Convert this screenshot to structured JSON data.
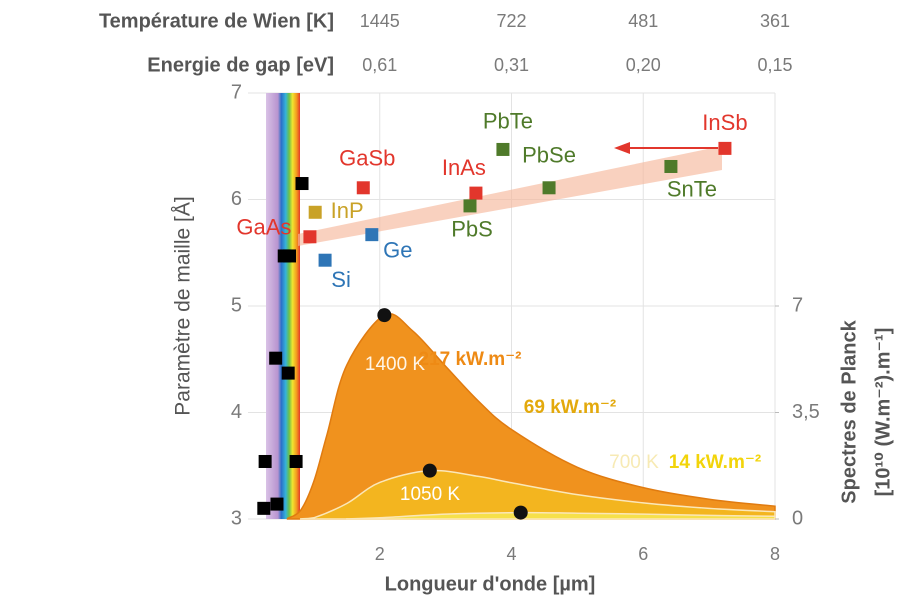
{
  "chart_data": {
    "type": "scatter",
    "xlabel": "Longueur d'onde [µm]",
    "ylabel": "Paramètre de maille [Å]",
    "y2label": [
      "Spectres de Planck",
      "[10¹⁰ (W.m⁻²).m⁻¹]"
    ],
    "xlim": [
      0,
      8
    ],
    "xticks": [
      2,
      4,
      6,
      8
    ],
    "ylim": [
      3,
      7
    ],
    "yticks": [
      3,
      4,
      5,
      6,
      7
    ],
    "y2lim": [
      0,
      14
    ],
    "y2ticks": [
      0,
      {
        "value": 3.5,
        "label": "3,5"
      },
      7
    ],
    "grid": true,
    "top_axes": [
      {
        "label": "Température de Wien [K]",
        "ticks": [
          1445,
          722,
          481,
          361
        ]
      },
      {
        "label": "Energie de gap [eV]",
        "ticks": [
          {
            "value": 0.61,
            "label": "0,61"
          },
          {
            "value": 0.31,
            "label": "0,31"
          },
          {
            "value": 0.2,
            "label": "0,20"
          },
          {
            "value": 0.15,
            "label": "0,15"
          }
        ]
      }
    ],
    "series": [
      {
        "color": "#e2362c",
        "labels": [
          "InSb",
          "GaSb",
          "InAs",
          "GaAs"
        ],
        "x": [
          7.24,
          1.75,
          3.46,
          0.94
        ],
        "values": [
          6.48,
          6.11,
          6.06,
          5.65
        ]
      },
      {
        "color": "#c9a227",
        "labels": [
          "InP"
        ],
        "x": [
          1.02
        ],
        "values": [
          5.88
        ]
      },
      {
        "color": "#2e75b6",
        "labels": [
          "Ge",
          "Si"
        ],
        "x": [
          1.88,
          1.17
        ],
        "values": [
          5.67,
          5.43
        ]
      },
      {
        "color": "#4f7a2a",
        "labels": [
          "PbTe",
          "PbSe",
          "PbS",
          "SnTe"
        ],
        "x": [
          3.87,
          4.57,
          3.37,
          6.42
        ],
        "values": [
          6.47,
          6.11,
          5.94,
          6.31
        ]
      },
      {
        "color": "#000000",
        "x": [
          0.82,
          0.24,
          0.44,
          0.26,
          0.73,
          0.42,
          0.61,
          0.55,
          0.63
        ],
        "values": [
          6.15,
          3.1,
          3.14,
          3.54,
          3.54,
          4.51,
          4.37,
          5.47,
          5.47
        ]
      }
    ],
    "planck": [
      {
        "label": "1400 K",
        "flux": "217 kW.m⁻²",
        "color": "#f0921e",
        "axis": "y2",
        "x": [
          0.6,
          0.8,
          1.0,
          1.2,
          1.5,
          2.07,
          2.5,
          3,
          3.5,
          4,
          5,
          6,
          7,
          8
        ],
        "values": [
          0.02,
          0.29,
          1.24,
          2.78,
          5.06,
          6.7,
          6.18,
          5.02,
          3.87,
          2.94,
          1.7,
          1.03,
          0.65,
          0.42
        ],
        "peak": [
          2.07,
          6.7
        ]
      },
      {
        "label": "1050 K",
        "flux": "69 kW.m⁻²",
        "color": "#f3b51f",
        "axis": "y2",
        "x": [
          0.8,
          1.0,
          1.5,
          2,
          2.76,
          3.5,
          4,
          5,
          6,
          7,
          8
        ],
        "values": [
          0.004,
          0.04,
          0.51,
          1.2,
          1.59,
          1.4,
          1.19,
          0.8,
          0.53,
          0.35,
          0.24
        ],
        "peak": [
          2.76,
          1.59
        ]
      },
      {
        "label": "700 K",
        "flux": "14 kW.m⁻²",
        "color": "#f6e04a",
        "axis": "y2",
        "x": [
          1.5,
          2,
          3,
          4.14,
          5,
          6,
          7,
          8
        ],
        "values": [
          0.005,
          0.04,
          0.16,
          0.21,
          0.19,
          0.16,
          0.12,
          0.09
        ],
        "peak": [
          4.14,
          0.21
        ]
      }
    ]
  }
}
